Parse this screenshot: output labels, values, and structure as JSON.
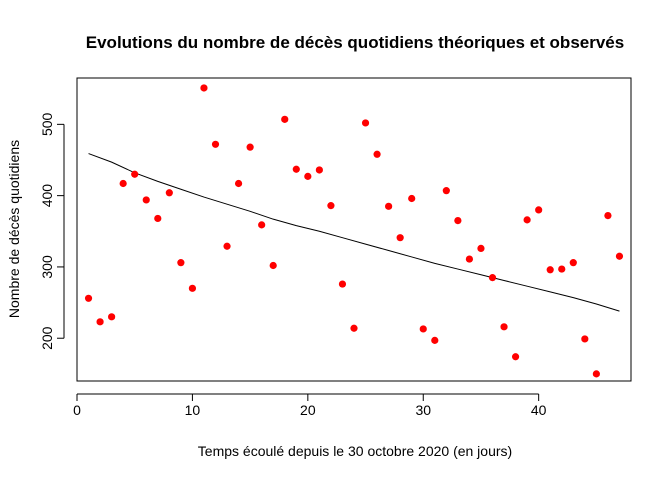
{
  "chart_data": {
    "type": "scatter",
    "title": "Evolutions du nombre de décès quotidiens théoriques et observés",
    "xlabel": "Temps écoulé depuis le 30 octobre 2020 (en jours)",
    "ylabel": "Nombre de décès quotidiens",
    "xlim": [
      0,
      48
    ],
    "ylim": [
      140,
      565
    ],
    "xticks": [
      0,
      10,
      20,
      30,
      40
    ],
    "yticks": [
      200,
      300,
      400,
      500
    ],
    "grid": false,
    "legend": "none",
    "series": [
      {
        "kind": "points",
        "color": "#ff0000",
        "x": [
          1,
          2,
          3,
          4,
          5,
          6,
          7,
          8,
          9,
          10,
          11,
          12,
          13,
          14,
          15,
          16,
          17,
          18,
          19,
          20,
          21,
          22,
          23,
          24,
          25,
          26,
          27,
          28,
          29,
          30,
          31,
          32,
          33,
          34,
          35,
          36,
          37,
          38,
          39,
          40,
          41,
          42,
          43,
          44,
          45,
          46,
          47
        ],
        "y": [
          256,
          223,
          230,
          417,
          430,
          394,
          368,
          404,
          306,
          270,
          551,
          472,
          329,
          417,
          468,
          359,
          302,
          507,
          437,
          427,
          436,
          386,
          276,
          214,
          502,
          458,
          385,
          341,
          396,
          213,
          197,
          407,
          365,
          311,
          326,
          285,
          216,
          174,
          366,
          380,
          296,
          297,
          306,
          199,
          150,
          372,
          315
        ]
      },
      {
        "kind": "line",
        "color": "#000000",
        "x": [
          1,
          3,
          5,
          7,
          9,
          11,
          13,
          15,
          17,
          19,
          21,
          23,
          25,
          27,
          29,
          31,
          33,
          35,
          37,
          39,
          41,
          43,
          45,
          47
        ],
        "y": [
          459,
          447,
          432,
          420,
          409,
          398,
          388,
          378,
          367,
          358,
          350,
          341,
          332,
          323,
          314,
          305,
          297,
          289,
          281,
          273,
          265,
          257,
          248,
          238
        ]
      }
    ]
  }
}
